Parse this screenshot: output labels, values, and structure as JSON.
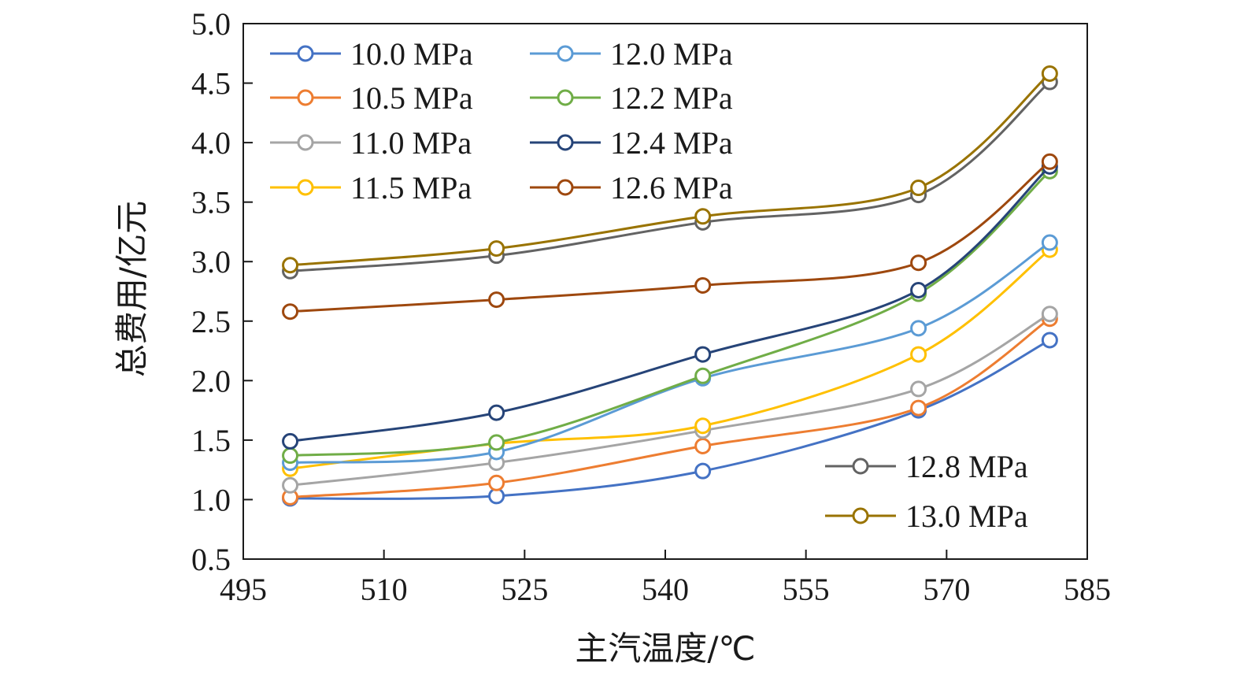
{
  "chart_data": {
    "type": "line",
    "xlabel": "主汽温度/℃",
    "ylabel": "总费用/亿元",
    "xlim": [
      495,
      585
    ],
    "ylim": [
      0.5,
      5.0
    ],
    "xticks": [
      "495",
      "510",
      "525",
      "540",
      "555",
      "570",
      "585"
    ],
    "yticks": [
      "0.5",
      "1.0",
      "1.5",
      "2.0",
      "2.5",
      "3.0",
      "3.5",
      "4.0",
      "4.5",
      "5.0"
    ],
    "x": [
      500,
      522,
      544,
      567,
      581
    ],
    "series": [
      {
        "name": "10.0 MPa",
        "color": "#4472C4",
        "values": [
          1.01,
          1.03,
          1.24,
          1.75,
          2.34
        ]
      },
      {
        "name": "10.5 MPa",
        "color": "#ED7D31",
        "values": [
          1.02,
          1.14,
          1.45,
          1.77,
          2.52
        ]
      },
      {
        "name": "11.0 MPa",
        "color": "#A5A5A5",
        "values": [
          1.12,
          1.31,
          1.58,
          1.93,
          2.56
        ]
      },
      {
        "name": "11.5 MPa",
        "color": "#FFC000",
        "values": [
          1.26,
          1.47,
          1.62,
          2.22,
          3.1
        ]
      },
      {
        "name": "12.0 MPa",
        "color": "#5B9BD5",
        "values": [
          1.31,
          1.4,
          2.02,
          2.44,
          3.16
        ]
      },
      {
        "name": "12.2 MPa",
        "color": "#70AD47",
        "values": [
          1.37,
          1.48,
          2.04,
          2.73,
          3.76
        ]
      },
      {
        "name": "12.4 MPa",
        "color": "#264478",
        "values": [
          1.49,
          1.73,
          2.22,
          2.76,
          3.8
        ]
      },
      {
        "name": "12.6 MPa",
        "color": "#9E480E",
        "values": [
          2.58,
          2.68,
          2.8,
          2.99,
          3.84
        ]
      },
      {
        "name": "12.8 MPa",
        "color": "#636363",
        "values": [
          2.92,
          3.05,
          3.33,
          3.56,
          4.51
        ]
      },
      {
        "name": "13.0 MPa",
        "color": "#997300",
        "values": [
          2.97,
          3.11,
          3.38,
          3.62,
          4.58
        ]
      }
    ],
    "legend": [
      {
        "placement": "top-left",
        "entries": [
          "10.0 MPa",
          "10.5 MPa",
          "11.0 MPa",
          "11.5 MPa",
          "12.0 MPa",
          "12.2 MPa",
          "12.4 MPa",
          "12.6 MPa"
        ]
      },
      {
        "placement": "bottom-right",
        "entries": [
          "12.8 MPa",
          "13.0 MPa"
        ]
      }
    ]
  }
}
